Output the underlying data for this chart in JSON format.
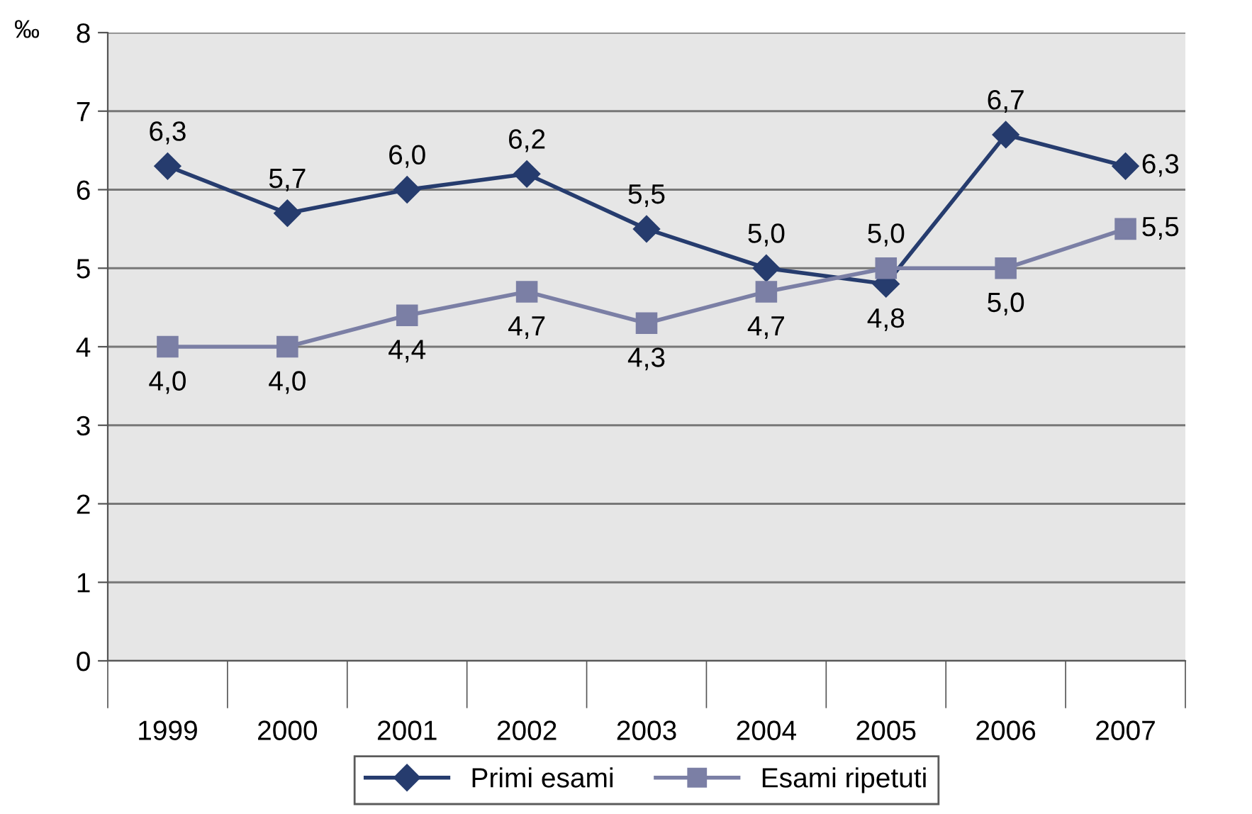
{
  "chart_data": {
    "type": "line",
    "ylabel": "‰",
    "categories": [
      "1999",
      "2000",
      "2001",
      "2002",
      "2003",
      "2004",
      "2005",
      "2006",
      "2007"
    ],
    "series": [
      {
        "name": "Primi esami",
        "color": "#263c6e",
        "marker": "diamond",
        "values": [
          6.3,
          5.7,
          6.0,
          6.2,
          5.5,
          5.0,
          4.8,
          6.7,
          6.3
        ],
        "value_labels": [
          "6,3",
          "5,7",
          "6,0",
          "6,2",
          "5,5",
          "5,0",
          "4,8",
          "6,7",
          "6,3"
        ]
      },
      {
        "name": "Esami ripetuti",
        "color": "#7b7fa5",
        "marker": "square",
        "values": [
          4.0,
          4.0,
          4.4,
          4.7,
          4.3,
          4.7,
          5.0,
          5.0,
          5.5
        ],
        "value_labels": [
          "4,0",
          "4,0",
          "4,4",
          "4,7",
          "4,3",
          "4,7",
          "5,0",
          "5,0",
          "5,5"
        ]
      }
    ],
    "ylim": [
      0,
      8
    ],
    "yticks": [
      0,
      1,
      2,
      3,
      4,
      5,
      6,
      7,
      8
    ],
    "grid": "y",
    "legend": "bottom",
    "line_style": "solid"
  }
}
